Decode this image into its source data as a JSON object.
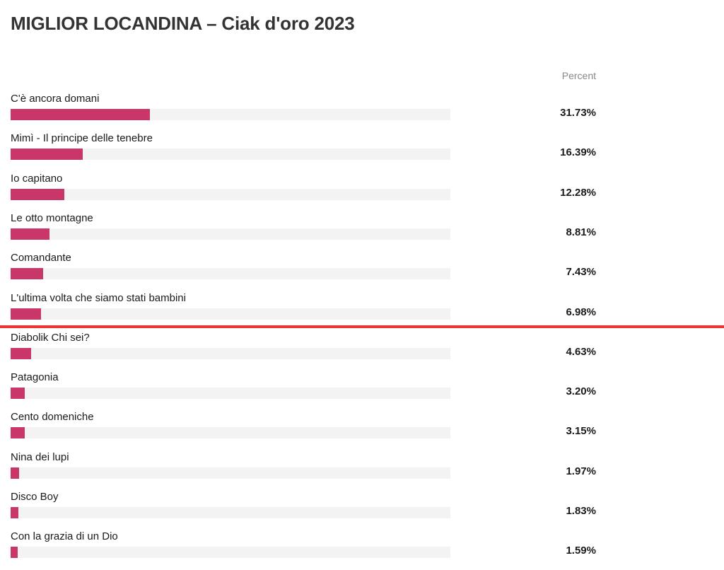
{
  "title": "MIGLIOR LOCANDINA – Ciak d'oro 2023",
  "chart_data": {
    "type": "bar",
    "orientation": "horizontal",
    "title": "MIGLIOR LOCANDINA – Ciak d'oro 2023",
    "value_header": "Percent",
    "unit": "%",
    "xlim": [
      0,
      100
    ],
    "categories": [
      "C'è ancora domani",
      "Mimì - Il principe delle tenebre",
      "Io capitano",
      "Le otto montagne",
      "Comandante",
      "L'ultima volta che siamo stati bambini",
      "Diabolik Chi sei?",
      "Patagonia",
      "Cento domeniche",
      "Nina dei lupi",
      "Disco Boy",
      "Con la grazia di un Dio"
    ],
    "values": [
      31.73,
      16.39,
      12.28,
      8.81,
      7.43,
      6.98,
      4.63,
      3.2,
      3.15,
      1.97,
      1.83,
      1.59
    ],
    "value_labels": [
      "31.73%",
      "16.39%",
      "12.28%",
      "8.81%",
      "7.43%",
      "6.98%",
      "4.63%",
      "3.20%",
      "3.15%",
      "1.97%",
      "1.83%",
      "1.59%"
    ],
    "bar_color": "#c9366a",
    "track_color": "#f3f3f3",
    "divider_color": "#ee3333",
    "divider_after_index": 5
  }
}
